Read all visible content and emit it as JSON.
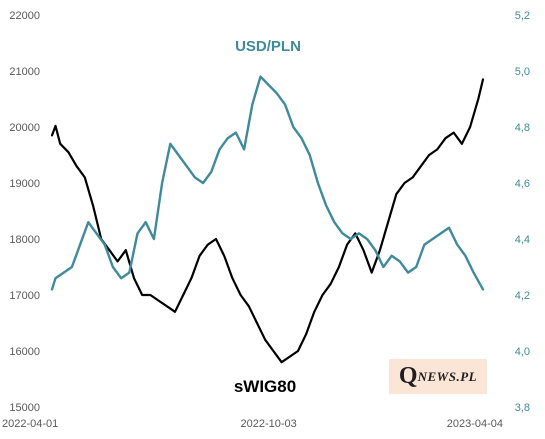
{
  "chart_data": {
    "type": "line",
    "x": [
      "2022-04-01",
      "2022-10-03",
      "2023-04-04"
    ],
    "x_tick_labels": [
      "2022-04-01",
      "2022-10-03",
      "2023-04-04"
    ],
    "y_left": {
      "range": [
        15000,
        22000
      ],
      "ticks": [
        "15000",
        "16000",
        "17000",
        "18000",
        "19000",
        "20000",
        "21000",
        "22000"
      ]
    },
    "y_right": {
      "range": [
        3.8,
        5.2
      ],
      "ticks": [
        "3,8",
        "4,0",
        "4,2",
        "4,4",
        "4,6",
        "4,8",
        "5,0",
        "5,2"
      ]
    },
    "series": [
      {
        "name": "sWIG80",
        "axis": "left",
        "color": "#000000",
        "values": [
          [
            "2022-04-01",
            19850
          ],
          [
            "2022-04-04",
            20020
          ],
          [
            "2022-04-08",
            19700
          ],
          [
            "2022-04-15",
            19550
          ],
          [
            "2022-04-22",
            19300
          ],
          [
            "2022-04-29",
            19100
          ],
          [
            "2022-05-06",
            18600
          ],
          [
            "2022-05-13",
            18000
          ],
          [
            "2022-05-20",
            17800
          ],
          [
            "2022-05-27",
            17600
          ],
          [
            "2022-06-03",
            17800
          ],
          [
            "2022-06-10",
            17300
          ],
          [
            "2022-06-17",
            17000
          ],
          [
            "2022-06-24",
            17000
          ],
          [
            "2022-07-01",
            16900
          ],
          [
            "2022-07-08",
            16800
          ],
          [
            "2022-07-15",
            16700
          ],
          [
            "2022-07-22",
            17000
          ],
          [
            "2022-07-29",
            17300
          ],
          [
            "2022-08-05",
            17700
          ],
          [
            "2022-08-12",
            17900
          ],
          [
            "2022-08-19",
            18000
          ],
          [
            "2022-08-26",
            17700
          ],
          [
            "2022-09-02",
            17300
          ],
          [
            "2022-09-09",
            17000
          ],
          [
            "2022-09-16",
            16800
          ],
          [
            "2022-09-23",
            16500
          ],
          [
            "2022-09-30",
            16200
          ],
          [
            "2022-10-07",
            16000
          ],
          [
            "2022-10-14",
            15800
          ],
          [
            "2022-10-21",
            15900
          ],
          [
            "2022-10-28",
            16000
          ],
          [
            "2022-11-04",
            16300
          ],
          [
            "2022-11-11",
            16700
          ],
          [
            "2022-11-18",
            17000
          ],
          [
            "2022-11-25",
            17200
          ],
          [
            "2022-12-02",
            17500
          ],
          [
            "2022-12-09",
            17900
          ],
          [
            "2022-12-16",
            18100
          ],
          [
            "2022-12-23",
            17800
          ],
          [
            "2022-12-30",
            17400
          ],
          [
            "2023-01-06",
            17800
          ],
          [
            "2023-01-13",
            18300
          ],
          [
            "2023-01-20",
            18800
          ],
          [
            "2023-01-27",
            19000
          ],
          [
            "2023-02-03",
            19100
          ],
          [
            "2023-02-10",
            19300
          ],
          [
            "2023-02-17",
            19500
          ],
          [
            "2023-02-24",
            19600
          ],
          [
            "2023-03-03",
            19800
          ],
          [
            "2023-03-10",
            19900
          ],
          [
            "2023-03-17",
            19700
          ],
          [
            "2023-03-24",
            20000
          ],
          [
            "2023-03-31",
            20500
          ],
          [
            "2023-04-04",
            20850
          ]
        ]
      },
      {
        "name": "USD/PLN",
        "axis": "right",
        "color": "#3f8a9b",
        "values": [
          [
            "2022-04-01",
            4.22
          ],
          [
            "2022-04-04",
            4.26
          ],
          [
            "2022-04-11",
            4.28
          ],
          [
            "2022-04-18",
            4.3
          ],
          [
            "2022-04-25",
            4.38
          ],
          [
            "2022-05-02",
            4.46
          ],
          [
            "2022-05-09",
            4.42
          ],
          [
            "2022-05-16",
            4.38
          ],
          [
            "2022-05-23",
            4.3
          ],
          [
            "2022-05-30",
            4.26
          ],
          [
            "2022-06-06",
            4.28
          ],
          [
            "2022-06-13",
            4.42
          ],
          [
            "2022-06-20",
            4.46
          ],
          [
            "2022-06-27",
            4.4
          ],
          [
            "2022-07-04",
            4.6
          ],
          [
            "2022-07-11",
            4.74
          ],
          [
            "2022-07-18",
            4.7
          ],
          [
            "2022-07-25",
            4.66
          ],
          [
            "2022-08-01",
            4.62
          ],
          [
            "2022-08-08",
            4.6
          ],
          [
            "2022-08-15",
            4.64
          ],
          [
            "2022-08-22",
            4.72
          ],
          [
            "2022-08-29",
            4.76
          ],
          [
            "2022-09-05",
            4.78
          ],
          [
            "2022-09-12",
            4.72
          ],
          [
            "2022-09-19",
            4.88
          ],
          [
            "2022-09-26",
            4.98
          ],
          [
            "2022-10-03",
            4.95
          ],
          [
            "2022-10-10",
            4.92
          ],
          [
            "2022-10-17",
            4.88
          ],
          [
            "2022-10-24",
            4.8
          ],
          [
            "2022-10-31",
            4.76
          ],
          [
            "2022-11-07",
            4.7
          ],
          [
            "2022-11-14",
            4.6
          ],
          [
            "2022-11-21",
            4.52
          ],
          [
            "2022-11-28",
            4.46
          ],
          [
            "2022-12-05",
            4.42
          ],
          [
            "2022-12-12",
            4.4
          ],
          [
            "2022-12-19",
            4.42
          ],
          [
            "2022-12-26",
            4.4
          ],
          [
            "2023-01-02",
            4.36
          ],
          [
            "2023-01-09",
            4.3
          ],
          [
            "2023-01-16",
            4.34
          ],
          [
            "2023-01-23",
            4.32
          ],
          [
            "2023-01-30",
            4.28
          ],
          [
            "2023-02-06",
            4.3
          ],
          [
            "2023-02-13",
            4.38
          ],
          [
            "2023-02-20",
            4.4
          ],
          [
            "2023-02-27",
            4.42
          ],
          [
            "2023-03-06",
            4.44
          ],
          [
            "2023-03-13",
            4.38
          ],
          [
            "2023-03-20",
            4.34
          ],
          [
            "2023-03-27",
            4.28
          ],
          [
            "2023-04-04",
            4.22
          ]
        ]
      }
    ],
    "annotations": [
      "USD/PLN",
      "sWIG80"
    ],
    "grid": false,
    "legend": "none"
  },
  "logo": {
    "q": "Q",
    "rest": "NEWS.PL"
  }
}
